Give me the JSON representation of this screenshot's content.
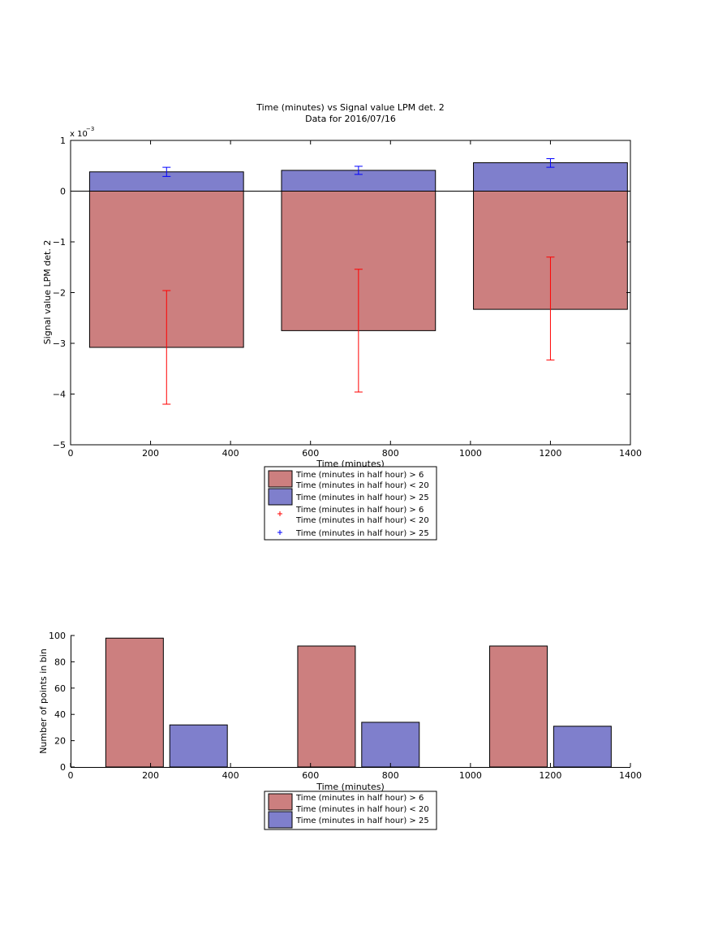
{
  "chart_data": [
    {
      "type": "bar",
      "title": "Time (minutes) vs Signal value LPM det. 2",
      "subtitle": "Data for 2016/07/16",
      "xlabel": "Time (minutes)",
      "ylabel": "Signal value LPM det. 2",
      "y_exponent_label": "x 10",
      "y_exponent_power": "−3",
      "xlim": [
        0,
        1400
      ],
      "ylim": [
        -5,
        1
      ],
      "x_ticks": [
        0,
        200,
        400,
        600,
        800,
        1000,
        1200,
        1400
      ],
      "y_ticks": [
        -5,
        -4,
        -3,
        -2,
        -1,
        0,
        1
      ],
      "y_tick_labels": [
        "−5",
        "−4",
        "−3",
        "−2",
        "−1",
        "0",
        "1"
      ],
      "grid": false,
      "legend_position": "below",
      "bar_width": 385,
      "x": [
        240,
        720,
        1200
      ],
      "series": [
        {
          "name": "Time (minutes in half hour) > 6\nTime (minutes in half hour) < 20",
          "color": "#cc7f7f",
          "values": [
            -3.08,
            -2.75,
            -2.33
          ],
          "error_low": [
            -4.2,
            -3.96,
            -3.33
          ],
          "error_high": [
            -1.96,
            -1.54,
            -1.3
          ],
          "error_color": "#ff0000"
        },
        {
          "name": "Time (minutes in half hour) > 25",
          "color": "#7f7fcc",
          "values": [
            0.38,
            0.41,
            0.56
          ],
          "error_low": [
            0.29,
            0.33,
            0.47
          ],
          "error_high": [
            0.47,
            0.49,
            0.64
          ],
          "error_color": "#0000ff"
        }
      ],
      "legend": [
        {
          "kind": "patch",
          "color": "#cc7f7f",
          "lines": [
            "Time (minutes in half hour) > 6",
            "Time (minutes in half hour) < 20"
          ]
        },
        {
          "kind": "patch",
          "color": "#7f7fcc",
          "lines": [
            "Time (minutes in half hour) > 25"
          ]
        },
        {
          "kind": "marker",
          "color": "#ff0000",
          "lines": [
            "Time (minutes in half hour) > 6",
            "Time (minutes in half hour) < 20"
          ]
        },
        {
          "kind": "marker",
          "color": "#0000ff",
          "lines": [
            "Time (minutes in half hour) > 25"
          ]
        }
      ]
    },
    {
      "type": "bar",
      "xlabel": "Time (minutes)",
      "ylabel": "Number of points in bin",
      "xlim": [
        0,
        1400
      ],
      "ylim": [
        0,
        100
      ],
      "x_ticks": [
        0,
        200,
        400,
        600,
        800,
        1000,
        1200,
        1400
      ],
      "y_ticks": [
        0,
        20,
        40,
        60,
        80,
        100
      ],
      "grid": false,
      "legend_position": "below",
      "bar_width": 144,
      "series": [
        {
          "name": "Time (minutes in half hour) > 6\nTime (minutes in half hour) < 20",
          "color": "#cc7f7f",
          "x": [
            160,
            640,
            1120
          ],
          "values": [
            98,
            92,
            92
          ]
        },
        {
          "name": "Time (minutes in half hour) > 25",
          "color": "#7f7fcc",
          "x": [
            320,
            800,
            1280
          ],
          "values": [
            32,
            34,
            31
          ]
        }
      ],
      "legend": [
        {
          "kind": "patch",
          "color": "#cc7f7f",
          "lines": [
            "Time (minutes in half hour) > 6",
            "Time (minutes in half hour) < 20"
          ]
        },
        {
          "kind": "patch",
          "color": "#7f7fcc",
          "lines": [
            "Time (minutes in half hour) > 25"
          ]
        }
      ]
    }
  ]
}
